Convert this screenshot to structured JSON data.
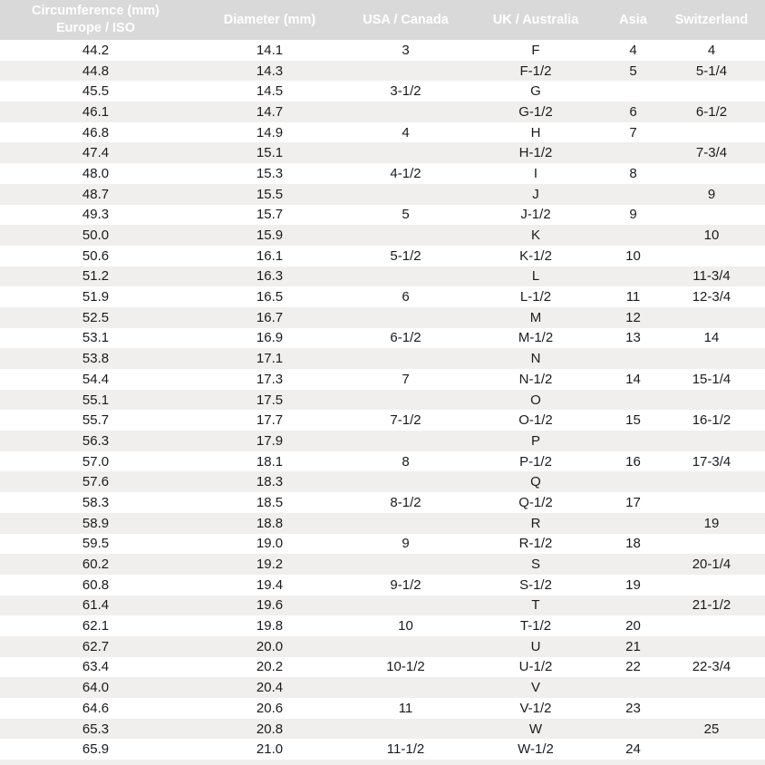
{
  "colors": {
    "header_background": "#d9d9d9",
    "header_text": "#ffffff",
    "row_stripe": "#f0efee",
    "body_text": "#1b1b1b",
    "background": "#ffffff"
  },
  "chart_data": {
    "type": "table",
    "title": "",
    "columns": [
      {
        "id": "circumference_europe_iso",
        "lines": [
          "Circumference (mm)",
          "Europe / ISO"
        ]
      },
      {
        "id": "diameter_mm",
        "lines": [
          "Diameter (mm)"
        ]
      },
      {
        "id": "usa_canada",
        "lines": [
          "USA / Canada"
        ]
      },
      {
        "id": "uk_australia",
        "lines": [
          "UK / Australia"
        ]
      },
      {
        "id": "asia",
        "lines": [
          "Asia"
        ]
      },
      {
        "id": "switzerland",
        "lines": [
          "Switzerland"
        ]
      }
    ],
    "rows": [
      [
        "44.2",
        "14.1",
        "3",
        "F",
        "4",
        "4"
      ],
      [
        "44.8",
        "14.3",
        "",
        "F-1/2",
        "5",
        "5-1/4"
      ],
      [
        "45.5",
        "14.5",
        "3-1/2",
        "G",
        "",
        ""
      ],
      [
        "46.1",
        "14.7",
        "",
        "G-1/2",
        "6",
        "6-1/2"
      ],
      [
        "46.8",
        "14.9",
        "4",
        "H",
        "7",
        ""
      ],
      [
        "47.4",
        "15.1",
        "",
        "H-1/2",
        "",
        "7-3/4"
      ],
      [
        "48.0",
        "15.3",
        "4-1/2",
        "I",
        "8",
        ""
      ],
      [
        "48.7",
        "15.5",
        "",
        "J",
        "",
        "9"
      ],
      [
        "49.3",
        "15.7",
        "5",
        "J-1/2",
        "9",
        ""
      ],
      [
        "50.0",
        "15.9",
        "",
        "K",
        "",
        "10"
      ],
      [
        "50.6",
        "16.1",
        "5-1/2",
        "K-1/2",
        "10",
        ""
      ],
      [
        "51.2",
        "16.3",
        "",
        "L",
        "",
        "11-3/4"
      ],
      [
        "51.9",
        "16.5",
        "6",
        "L-1/2",
        "11",
        "12-3/4"
      ],
      [
        "52.5",
        "16.7",
        "",
        "M",
        "12",
        ""
      ],
      [
        "53.1",
        "16.9",
        "6-1/2",
        "M-1/2",
        "13",
        "14"
      ],
      [
        "53.8",
        "17.1",
        "",
        "N",
        "",
        ""
      ],
      [
        "54.4",
        "17.3",
        "7",
        "N-1/2",
        "14",
        "15-1/4"
      ],
      [
        "55.1",
        "17.5",
        "",
        "O",
        "",
        ""
      ],
      [
        "55.7",
        "17.7",
        "7-1/2",
        "O-1/2",
        "15",
        "16-1/2"
      ],
      [
        "56.3",
        "17.9",
        "",
        "P",
        "",
        ""
      ],
      [
        "57.0",
        "18.1",
        "8",
        "P-1/2",
        "16",
        "17-3/4"
      ],
      [
        "57.6",
        "18.3",
        "",
        "Q",
        "",
        ""
      ],
      [
        "58.3",
        "18.5",
        "8-1/2",
        "Q-1/2",
        "17",
        ""
      ],
      [
        "58.9",
        "18.8",
        "",
        "R",
        "",
        "19"
      ],
      [
        "59.5",
        "19.0",
        "9",
        "R-1/2",
        "18",
        ""
      ],
      [
        "60.2",
        "19.2",
        "",
        "S",
        "",
        "20-1/4"
      ],
      [
        "60.8",
        "19.4",
        "9-1/2",
        "S-1/2",
        "19",
        ""
      ],
      [
        "61.4",
        "19.6",
        "",
        "T",
        "",
        "21-1/2"
      ],
      [
        "62.1",
        "19.8",
        "10",
        "T-1/2",
        "20",
        ""
      ],
      [
        "62.7",
        "20.0",
        "",
        "U",
        "21",
        ""
      ],
      [
        "63.4",
        "20.2",
        "10-1/2",
        "U-1/2",
        "22",
        "22-3/4"
      ],
      [
        "64.0",
        "20.4",
        "",
        "V",
        "",
        ""
      ],
      [
        "64.6",
        "20.6",
        "11",
        "V-1/2",
        "23",
        ""
      ],
      [
        "65.3",
        "20.8",
        "",
        "W",
        "",
        "25"
      ],
      [
        "65.9",
        "21.0",
        "11-1/2",
        "W-1/2",
        "24",
        ""
      ]
    ]
  }
}
